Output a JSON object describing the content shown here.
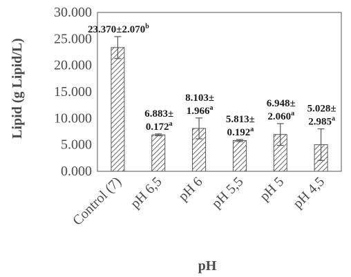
{
  "chart_data": {
    "type": "bar",
    "title": "",
    "xlabel": "pH",
    "ylabel": "Lipid (g Lipid/L)",
    "ylim": [
      0,
      30
    ],
    "yticks": [
      "0.000",
      "5.000",
      "10.000",
      "15.000",
      "20.000",
      "25.000",
      "30.000"
    ],
    "categories": [
      "Control (7)",
      "pH 6,5",
      "pH 6",
      "pH 5,5",
      "pH 5",
      "pH 4,5"
    ],
    "values": [
      23.37,
      6.883,
      8.103,
      5.813,
      6.948,
      5.028
    ],
    "errors": [
      2.07,
      0.172,
      1.966,
      0.192,
      2.06,
      2.985
    ],
    "data_labels": [
      {
        "lines": [
          "23.370±2.070"
        ],
        "sup": "b"
      },
      {
        "lines": [
          "6.883±",
          "0.172"
        ],
        "sup": "a"
      },
      {
        "lines": [
          "8.103±",
          "1.966"
        ],
        "sup": "a"
      },
      {
        "lines": [
          "5.813±",
          "0.192"
        ],
        "sup": "a"
      },
      {
        "lines": [
          "6.948±",
          "2.060"
        ],
        "sup": "a"
      },
      {
        "lines": [
          "5.028±",
          "2.985"
        ],
        "sup": "a"
      }
    ],
    "bar_style": "diagonal-hatch",
    "bar_color": "#555555",
    "error_bar_color": "#555555",
    "axis_color": "#666666",
    "grid": false,
    "legend": "none"
  }
}
